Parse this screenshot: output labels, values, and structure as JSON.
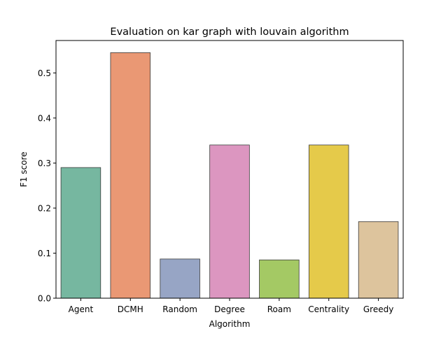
{
  "chart_data": {
    "type": "bar",
    "title": "Evaluation on kar graph with louvain algorithm",
    "xlabel": "Algorithm",
    "ylabel": "F1 score",
    "categories": [
      "Agent",
      "DCMH",
      "Random",
      "Degree",
      "Roam",
      "Centrality",
      "Greedy"
    ],
    "values": [
      0.29,
      0.545,
      0.087,
      0.34,
      0.085,
      0.34,
      0.17
    ],
    "colors": [
      "#76b7a0",
      "#ea9874",
      "#97a5c5",
      "#dc96c0",
      "#a4c964",
      "#e5ca4a",
      "#ddc49d"
    ],
    "edge_color": "#3a3a3a",
    "ylim": [
      0,
      0.572
    ],
    "yticks": [
      0.0,
      0.1,
      0.2,
      0.3,
      0.4,
      0.5
    ],
    "ytick_labels": [
      "0.0",
      "0.1",
      "0.2",
      "0.3",
      "0.4",
      "0.5"
    ],
    "grid": false,
    "legend": false
  }
}
